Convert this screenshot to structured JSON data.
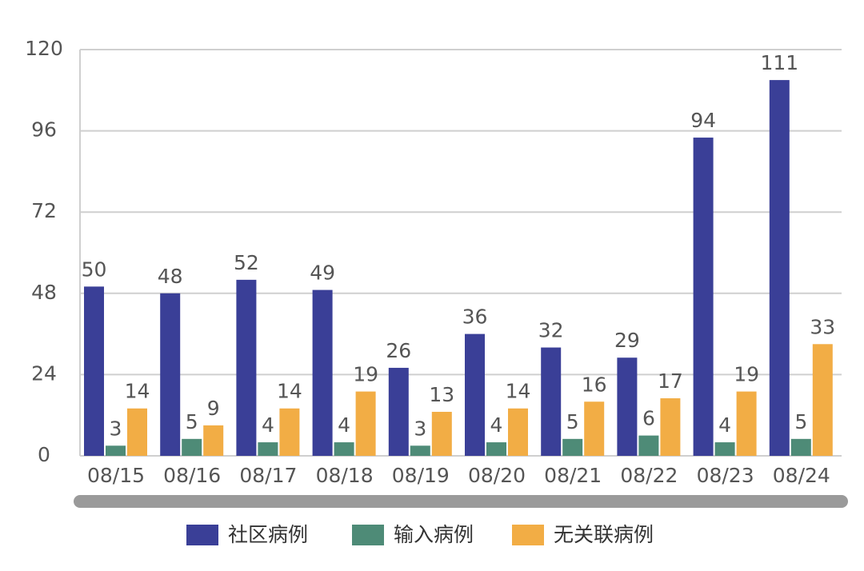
{
  "chart_data": {
    "type": "bar",
    "categories": [
      "08/15",
      "08/16",
      "08/17",
      "08/18",
      "08/19",
      "08/20",
      "08/21",
      "08/22",
      "08/23",
      "08/24"
    ],
    "series": [
      {
        "name": "社区病例",
        "color": "#3a3f97",
        "values": [
          50,
          48,
          52,
          49,
          26,
          36,
          32,
          29,
          94,
          111
        ]
      },
      {
        "name": "输入病例",
        "color": "#4e8b77",
        "values": [
          3,
          5,
          4,
          4,
          3,
          4,
          5,
          6,
          4,
          5
        ]
      },
      {
        "name": "无关联病例",
        "color": "#f2ad45",
        "values": [
          14,
          9,
          14,
          19,
          13,
          14,
          16,
          17,
          19,
          33
        ]
      }
    ],
    "ylim": [
      0,
      120
    ],
    "yticks": [
      0,
      24,
      48,
      72,
      96,
      120
    ],
    "grid": true,
    "legend": "bottom"
  }
}
